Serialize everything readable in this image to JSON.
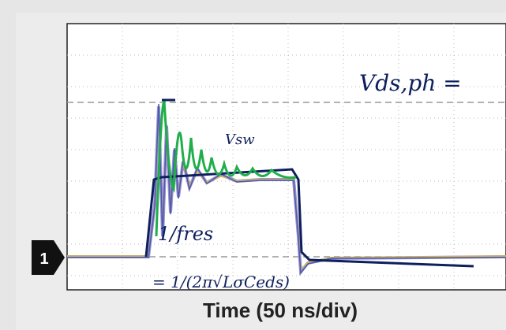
{
  "channel_marker": "1",
  "x_axis_label": "Time (50 ns/div)",
  "annotations": [
    "Vds,ph =",
    "Vsw",
    "1/fres",
    "= 1/(2π√LσCeds)"
  ]
}
